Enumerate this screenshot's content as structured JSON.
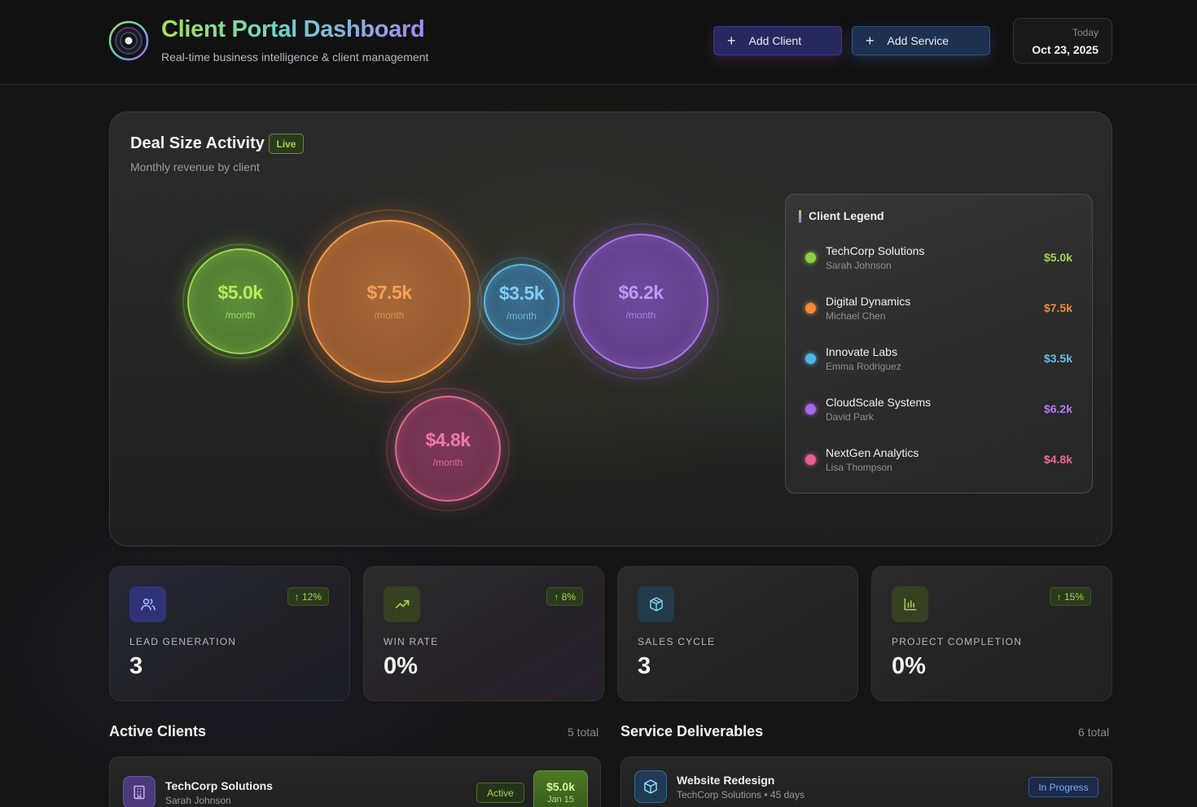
{
  "header": {
    "title": "Client Portal Dashboard",
    "subtitle": "Real-time business intelligence & client management",
    "add_client_label": "Add Client",
    "add_service_label": "Add Service",
    "date_label": "Today",
    "date_value": "Oct 23, 2025"
  },
  "deal": {
    "title": "Deal Size Activity",
    "live_badge": "Live",
    "subtitle": "Monthly revenue by client",
    "bubbles": [
      {
        "amount": "$5.0k",
        "unit": "/month",
        "color": "#8ccf3f"
      },
      {
        "amount": "$7.5k",
        "unit": "/month",
        "color": "#f08a3a"
      },
      {
        "amount": "$3.5k",
        "unit": "/month",
        "color": "#4fb4e6"
      },
      {
        "amount": "$6.2k",
        "unit": "/month",
        "color": "#a468e8"
      },
      {
        "amount": "$4.8k",
        "unit": "/month",
        "color": "#e0608e"
      }
    ],
    "legend": {
      "title": "Client Legend",
      "items": [
        {
          "name": "TechCorp Solutions",
          "contact": "Sarah Johnson",
          "amount": "$5.0k",
          "color": "#8ccf3f"
        },
        {
          "name": "Digital Dynamics",
          "contact": "Michael Chen",
          "amount": "$7.5k",
          "color": "#f08a3a"
        },
        {
          "name": "Innovate Labs",
          "contact": "Emma Rodriguez",
          "amount": "$3.5k",
          "color": "#4fb4e6"
        },
        {
          "name": "CloudScale Systems",
          "contact": "David Park",
          "amount": "$6.2k",
          "color": "#a468e8"
        },
        {
          "name": "NextGen Analytics",
          "contact": "Lisa Thompson",
          "amount": "$4.8k",
          "color": "#e0608e"
        }
      ]
    }
  },
  "stats": [
    {
      "label": "LEAD GENERATION",
      "value": "3",
      "delta": "↑ 12%",
      "icon": "users-icon"
    },
    {
      "label": "WIN RATE",
      "value": "0%",
      "delta": "↑ 8%",
      "icon": "trending-up-icon"
    },
    {
      "label": "SALES CYCLE",
      "value": "3",
      "delta": "",
      "icon": "box-icon"
    },
    {
      "label": "PROJECT COMPLETION",
      "value": "0%",
      "delta": "↑ 15%",
      "icon": "bar-chart-icon"
    }
  ],
  "active_clients": {
    "title": "Active Clients",
    "count": "5 total",
    "first": {
      "name": "TechCorp Solutions",
      "contact": "Sarah Johnson",
      "status": "Active",
      "amount": "$5.0k",
      "date": "Jan 15"
    }
  },
  "deliverables": {
    "title": "Service Deliverables",
    "count": "6 total",
    "first": {
      "name": "Website Redesign",
      "sub": "TechCorp Solutions • 45 days",
      "status": "In Progress"
    }
  }
}
